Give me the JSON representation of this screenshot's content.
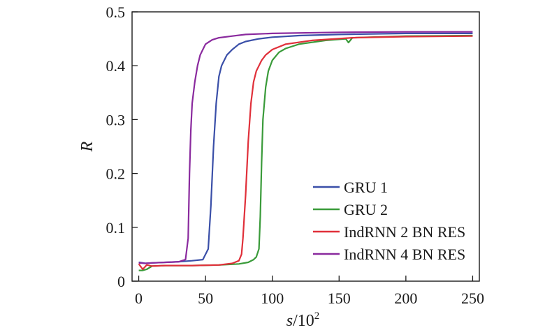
{
  "chart_data": {
    "type": "line",
    "xlabel": "s",
    "xlabel_unit": "/10",
    "xlabel_exp": "2",
    "ylabel": "R",
    "xlim": [
      -5,
      255
    ],
    "ylim": [
      0,
      0.5
    ],
    "xticks": [
      0,
      50,
      100,
      150,
      200,
      250
    ],
    "yticks": [
      0,
      0.1,
      0.2,
      0.3,
      0.4,
      0.5
    ],
    "xtick_labels": [
      "0",
      "50",
      "100",
      "150",
      "200",
      "250"
    ],
    "ytick_labels": [
      "0",
      "0.1",
      "0.2",
      "0.3",
      "0.4",
      "0.5"
    ],
    "grid": false,
    "legend_position": "bottom-right",
    "series": [
      {
        "name": "GRU 1",
        "color": "#3a4fa8",
        "x": [
          0,
          5,
          10,
          20,
          30,
          40,
          48,
          52,
          54,
          56,
          58,
          60,
          62,
          64,
          66,
          70,
          75,
          80,
          90,
          100,
          120,
          150,
          200,
          250
        ],
        "y": [
          0.035,
          0.033,
          0.034,
          0.035,
          0.036,
          0.038,
          0.04,
          0.06,
          0.14,
          0.25,
          0.33,
          0.38,
          0.4,
          0.41,
          0.42,
          0.43,
          0.44,
          0.445,
          0.45,
          0.453,
          0.456,
          0.458,
          0.46,
          0.46
        ]
      },
      {
        "name": "GRU 2",
        "color": "#3a9b3a",
        "x": [
          0,
          3,
          6,
          10,
          20,
          40,
          60,
          75,
          82,
          86,
          88,
          90,
          91,
          92,
          93,
          95,
          97,
          100,
          105,
          110,
          120,
          140,
          155,
          157,
          160,
          200,
          250
        ],
        "y": [
          0.02,
          0.02,
          0.022,
          0.028,
          0.029,
          0.029,
          0.03,
          0.032,
          0.035,
          0.04,
          0.045,
          0.06,
          0.12,
          0.22,
          0.3,
          0.36,
          0.39,
          0.41,
          0.425,
          0.432,
          0.44,
          0.447,
          0.45,
          0.443,
          0.452,
          0.455,
          0.456
        ]
      },
      {
        "name": "IndRNN 2 BN RES",
        "color": "#e0303a",
        "x": [
          0,
          3,
          6,
          10,
          20,
          40,
          60,
          70,
          75,
          77,
          78,
          80,
          82,
          84,
          86,
          88,
          90,
          92,
          95,
          100,
          110,
          130,
          160,
          200,
          250
        ],
        "y": [
          0.032,
          0.022,
          0.03,
          0.028,
          0.029,
          0.029,
          0.03,
          0.033,
          0.038,
          0.05,
          0.08,
          0.16,
          0.26,
          0.33,
          0.37,
          0.39,
          0.4,
          0.41,
          0.42,
          0.43,
          0.44,
          0.447,
          0.452,
          0.454,
          0.455
        ]
      },
      {
        "name": "IndRNN 4 BN RES",
        "color": "#8a2a9e",
        "x": [
          0,
          5,
          10,
          20,
          30,
          35,
          37,
          38,
          39,
          40,
          42,
          44,
          46,
          48,
          50,
          55,
          60,
          70,
          80,
          100,
          150,
          200,
          250
        ],
        "y": [
          0.034,
          0.033,
          0.034,
          0.035,
          0.036,
          0.04,
          0.08,
          0.2,
          0.28,
          0.33,
          0.37,
          0.4,
          0.42,
          0.43,
          0.44,
          0.448,
          0.452,
          0.455,
          0.458,
          0.46,
          0.462,
          0.463,
          0.463
        ]
      }
    ]
  }
}
